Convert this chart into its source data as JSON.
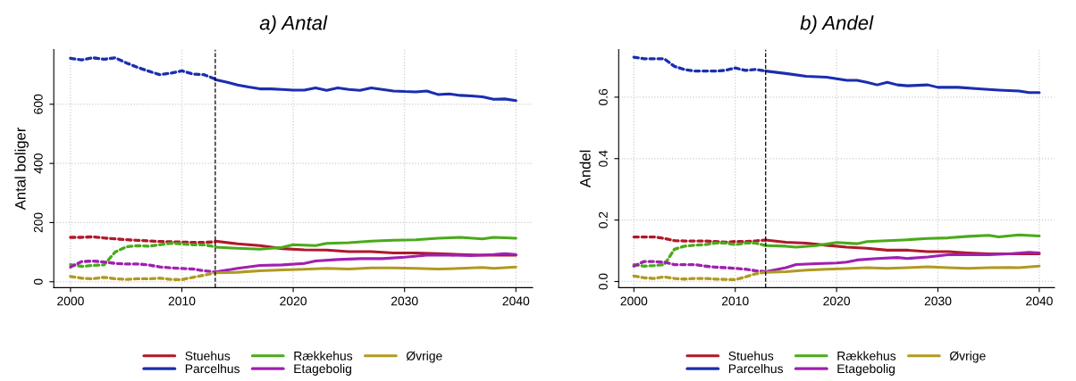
{
  "chart_data": [
    {
      "type": "line",
      "title": "a) Antal",
      "ylabel": "Antal boliger",
      "xlim": [
        1998.5,
        2041.5
      ],
      "xticks": [
        2000,
        2010,
        2020,
        2030,
        2040
      ],
      "ylim": [
        -20,
        785
      ],
      "yticks": [
        0,
        200,
        400,
        600
      ],
      "grid": true,
      "legend": "bottom",
      "ref_lines": [
        {
          "axis": "x",
          "value": 2013,
          "color": "#000000",
          "line_style": "dashed"
        }
      ],
      "series": [
        {
          "color": "#b0182a",
          "line_style": "dotted",
          "x": [
            2000,
            2001,
            2002,
            2003,
            2004,
            2005,
            2006,
            2007,
            2008,
            2009,
            2010,
            2011,
            2012,
            2013
          ],
          "values": [
            150,
            150,
            152,
            148,
            145,
            142,
            140,
            138,
            136,
            135,
            134,
            133,
            133,
            135
          ]
        },
        {
          "color": "#1a2eb0",
          "line_style": "dotted",
          "x": [
            2000,
            2001,
            2002,
            2003,
            2004,
            2005,
            2006,
            2007,
            2008,
            2009,
            2010,
            2011,
            2012,
            2013
          ],
          "values": [
            755,
            750,
            757,
            752,
            757,
            740,
            725,
            712,
            700,
            705,
            713,
            702,
            700,
            685
          ]
        },
        {
          "color": "#4aaa1a",
          "line_style": "dotted",
          "x": [
            2000,
            2001,
            2002,
            2003,
            2004,
            2005,
            2006,
            2007,
            2008,
            2009,
            2010,
            2011,
            2012,
            2013
          ],
          "values": [
            58,
            52,
            55,
            57,
            100,
            118,
            122,
            120,
            125,
            130,
            128,
            125,
            125,
            118
          ]
        },
        {
          "color": "#a020b0",
          "line_style": "dotted",
          "x": [
            2000,
            2001,
            2002,
            2003,
            2004,
            2005,
            2006,
            2007,
            2008,
            2009,
            2010,
            2011,
            2012,
            2013
          ],
          "values": [
            50,
            68,
            70,
            67,
            62,
            60,
            60,
            57,
            50,
            47,
            45,
            43,
            37,
            33
          ]
        },
        {
          "color": "#b09a20",
          "line_style": "dotted",
          "x": [
            2000,
            2001,
            2002,
            2003,
            2004,
            2005,
            2006,
            2007,
            2008,
            2009,
            2010,
            2011,
            2012,
            2013
          ],
          "values": [
            18,
            12,
            10,
            15,
            10,
            8,
            10,
            10,
            12,
            8,
            7,
            15,
            22,
            30
          ]
        },
        {
          "name": "Stuehus",
          "color": "#b0182a",
          "line_style": "solid",
          "x": [
            2013,
            2015,
            2017,
            2019,
            2021,
            2023,
            2025,
            2027,
            2029,
            2031,
            2033,
            2035,
            2037,
            2040
          ],
          "values": [
            137,
            128,
            122,
            112,
            108,
            107,
            102,
            102,
            97,
            97,
            95,
            92,
            90,
            90
          ]
        },
        {
          "name": "Parcelhus",
          "color": "#1a2eb0",
          "line_style": "solid",
          "x": [
            2013,
            2014,
            2015,
            2016,
            2017,
            2018,
            2019,
            2020,
            2021,
            2022,
            2023,
            2024,
            2025,
            2026,
            2027,
            2028,
            2029,
            2030,
            2031,
            2032,
            2033,
            2034,
            2035,
            2036,
            2037,
            2038,
            2039,
            2040
          ],
          "values": [
            683,
            675,
            665,
            658,
            652,
            652,
            650,
            648,
            648,
            655,
            647,
            655,
            650,
            647,
            655,
            650,
            645,
            643,
            642,
            645,
            633,
            635,
            630,
            628,
            625,
            617,
            618,
            612
          ]
        },
        {
          "name": "Rækkehus",
          "color": "#4aaa1a",
          "line_style": "solid",
          "x": [
            2013,
            2015,
            2017,
            2019,
            2020,
            2022,
            2023,
            2025,
            2027,
            2029,
            2031,
            2033,
            2035,
            2037,
            2038,
            2040
          ],
          "values": [
            117,
            113,
            110,
            116,
            125,
            122,
            130,
            132,
            137,
            140,
            142,
            147,
            150,
            145,
            150,
            147
          ]
        },
        {
          "name": "Etagebolig",
          "color": "#a020b0",
          "line_style": "solid",
          "x": [
            2013,
            2015,
            2017,
            2019,
            2021,
            2022,
            2024,
            2026,
            2028,
            2030,
            2032,
            2034,
            2036,
            2038,
            2039,
            2040
          ],
          "values": [
            33,
            45,
            55,
            57,
            62,
            70,
            75,
            78,
            78,
            83,
            90,
            90,
            88,
            92,
            95,
            92
          ]
        },
        {
          "name": "Øvrige",
          "color": "#b09a20",
          "line_style": "solid",
          "x": [
            2013,
            2015,
            2017,
            2019,
            2021,
            2023,
            2025,
            2027,
            2029,
            2031,
            2033,
            2035,
            2037,
            2038,
            2040
          ],
          "values": [
            30,
            32,
            37,
            40,
            42,
            45,
            43,
            47,
            47,
            45,
            43,
            45,
            48,
            45,
            50
          ]
        }
      ]
    },
    {
      "type": "line",
      "title": "b) Andel",
      "ylabel": "Andel",
      "xlim": [
        1998.5,
        2041.5
      ],
      "xticks": [
        2000,
        2010,
        2020,
        2030,
        2040
      ],
      "ylim": [
        -0.02,
        0.755
      ],
      "yticks": [
        {
          "value": 0,
          "label": "0.0"
        },
        0.2,
        0.4,
        0.6
      ],
      "grid": true,
      "legend": "bottom",
      "ref_lines": [
        {
          "axis": "x",
          "value": 2013,
          "color": "#000000",
          "line_style": "dashed"
        }
      ],
      "series": [
        {
          "color": "#b0182a",
          "line_style": "dotted",
          "x": [
            2000,
            2001,
            2002,
            2003,
            2004,
            2005,
            2006,
            2007,
            2008,
            2009,
            2010,
            2011,
            2012,
            2013
          ],
          "values": [
            0.145,
            0.145,
            0.145,
            0.14,
            0.133,
            0.132,
            0.132,
            0.132,
            0.13,
            0.128,
            0.13,
            0.13,
            0.132,
            0.135
          ]
        },
        {
          "color": "#1a2eb0",
          "line_style": "dotted",
          "x": [
            2000,
            2001,
            2002,
            2003,
            2004,
            2005,
            2006,
            2007,
            2008,
            2009,
            2010,
            2011,
            2012,
            2013
          ],
          "values": [
            0.73,
            0.725,
            0.725,
            0.725,
            0.7,
            0.69,
            0.685,
            0.685,
            0.685,
            0.687,
            0.695,
            0.687,
            0.69,
            0.685
          ]
        },
        {
          "color": "#4aaa1a",
          "line_style": "dotted",
          "x": [
            2000,
            2001,
            2002,
            2003,
            2004,
            2005,
            2006,
            2007,
            2008,
            2009,
            2010,
            2011,
            2012,
            2013
          ],
          "values": [
            0.055,
            0.05,
            0.052,
            0.055,
            0.105,
            0.115,
            0.118,
            0.12,
            0.125,
            0.125,
            0.12,
            0.125,
            0.125,
            0.117
          ]
        },
        {
          "color": "#a020b0",
          "line_style": "dotted",
          "x": [
            2000,
            2001,
            2002,
            2003,
            2004,
            2005,
            2006,
            2007,
            2008,
            2009,
            2010,
            2011,
            2012,
            2013
          ],
          "values": [
            0.05,
            0.065,
            0.065,
            0.063,
            0.055,
            0.055,
            0.055,
            0.05,
            0.047,
            0.045,
            0.043,
            0.04,
            0.035,
            0.032
          ]
        },
        {
          "color": "#b09a20",
          "line_style": "dotted",
          "x": [
            2000,
            2001,
            2002,
            2003,
            2004,
            2005,
            2006,
            2007,
            2008,
            2009,
            2010,
            2011,
            2012,
            2013
          ],
          "values": [
            0.018,
            0.012,
            0.01,
            0.015,
            0.01,
            0.008,
            0.01,
            0.01,
            0.008,
            0.007,
            0.006,
            0.015,
            0.025,
            0.03
          ]
        },
        {
          "name": "Stuehus",
          "color": "#b0182a",
          "line_style": "solid",
          "x": [
            2013,
            2015,
            2017,
            2019,
            2021,
            2023,
            2025,
            2027,
            2029,
            2031,
            2033,
            2035,
            2037,
            2040
          ],
          "values": [
            0.135,
            0.128,
            0.125,
            0.118,
            0.112,
            0.108,
            0.102,
            0.102,
            0.097,
            0.097,
            0.093,
            0.09,
            0.09,
            0.09
          ]
        },
        {
          "name": "Parcelhus",
          "color": "#1a2eb0",
          "line_style": "solid",
          "x": [
            2013,
            2015,
            2017,
            2019,
            2021,
            2022,
            2023,
            2024,
            2025,
            2026,
            2027,
            2029,
            2030,
            2032,
            2034,
            2036,
            2038,
            2039,
            2040
          ],
          "values": [
            0.685,
            0.677,
            0.668,
            0.665,
            0.655,
            0.655,
            0.648,
            0.64,
            0.648,
            0.64,
            0.637,
            0.64,
            0.632,
            0.632,
            0.627,
            0.623,
            0.62,
            0.615,
            0.615
          ]
        },
        {
          "name": "Rækkehus",
          "color": "#4aaa1a",
          "line_style": "solid",
          "x": [
            2013,
            2015,
            2016,
            2018,
            2020,
            2022,
            2023,
            2025,
            2027,
            2029,
            2031,
            2033,
            2035,
            2036,
            2038,
            2040
          ],
          "values": [
            0.117,
            0.115,
            0.112,
            0.117,
            0.127,
            0.123,
            0.13,
            0.133,
            0.136,
            0.14,
            0.142,
            0.147,
            0.15,
            0.145,
            0.152,
            0.148
          ]
        },
        {
          "name": "Etagebolig",
          "color": "#a020b0",
          "line_style": "solid",
          "x": [
            2013,
            2015,
            2016,
            2018,
            2020,
            2021,
            2022,
            2024,
            2026,
            2027,
            2029,
            2031,
            2033,
            2035,
            2037,
            2039,
            2040
          ],
          "values": [
            0.032,
            0.045,
            0.055,
            0.058,
            0.06,
            0.063,
            0.07,
            0.075,
            0.078,
            0.075,
            0.08,
            0.087,
            0.088,
            0.087,
            0.09,
            0.095,
            0.093
          ]
        },
        {
          "name": "Øvrige",
          "color": "#b09a20",
          "line_style": "solid",
          "x": [
            2013,
            2015,
            2017,
            2019,
            2021,
            2023,
            2025,
            2027,
            2029,
            2031,
            2033,
            2035,
            2037,
            2038,
            2040
          ],
          "values": [
            0.03,
            0.032,
            0.037,
            0.04,
            0.042,
            0.045,
            0.043,
            0.045,
            0.048,
            0.045,
            0.043,
            0.045,
            0.046,
            0.045,
            0.05
          ]
        }
      ]
    }
  ]
}
